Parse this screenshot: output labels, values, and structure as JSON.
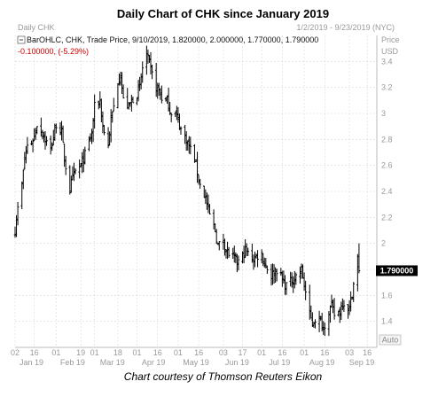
{
  "title": "Daily Chart of CHK since January 2019",
  "caption": "Chart courtesy of Thomson Reuters Eikon",
  "header": {
    "left_label": "Daily CHK",
    "date_range": "1/2/2019 - 9/23/2019 (NYC)",
    "price_label": "Price",
    "currency_label": "USD",
    "ohlc_line": "BarOHLC, CHK, Trade Price, 9/10/2019, 1.820000, 2.000000, 1.770000, 1.790000",
    "change_line": "-0.100000, (-5.29%)",
    "auto_label": "Auto"
  },
  "last_price_label": "1.790000",
  "colors": {
    "bar": "#000000",
    "grid": "#d8d8d8",
    "axis_text": "#9a9a9a",
    "negative": "#d00000",
    "last_price_bg": "#000000"
  },
  "icons": {
    "legend_toggle": "minus-box-icon"
  },
  "chart_data": {
    "type": "ohlc",
    "title": "Daily Chart of CHK since January 2019",
    "ylim": [
      1.2,
      3.6
    ],
    "y_ticks": [
      1.4,
      1.6,
      1.8,
      2,
      2.2,
      2.4,
      2.6,
      2.8,
      3,
      3.2,
      3.4
    ],
    "y_tick_labels": [
      "1.4",
      "1.6",
      "1.8",
      "2",
      "2.2",
      "2.4",
      "2.6",
      "2.8",
      "3",
      "3.2",
      "3.4"
    ],
    "x_day_ticks": [
      {
        "label": "02",
        "date": "2019-01-02"
      },
      {
        "label": "16",
        "date": "2019-01-16"
      },
      {
        "label": "01",
        "date": "2019-02-01"
      },
      {
        "label": "19",
        "date": "2019-02-19"
      },
      {
        "label": "01",
        "date": "2019-03-01"
      },
      {
        "label": "18",
        "date": "2019-03-18"
      },
      {
        "label": "01",
        "date": "2019-04-01"
      },
      {
        "label": "16",
        "date": "2019-04-16"
      },
      {
        "label": "01",
        "date": "2019-05-01"
      },
      {
        "label": "16",
        "date": "2019-05-16"
      },
      {
        "label": "03",
        "date": "2019-06-03"
      },
      {
        "label": "17",
        "date": "2019-06-17"
      },
      {
        "label": "01",
        "date": "2019-07-01"
      },
      {
        "label": "16",
        "date": "2019-07-16"
      },
      {
        "label": "01",
        "date": "2019-08-01"
      },
      {
        "label": "16",
        "date": "2019-08-16"
      },
      {
        "label": "03",
        "date": "2019-09-03"
      },
      {
        "label": "16",
        "date": "2019-09-16"
      }
    ],
    "x_month_ticks": [
      {
        "label": "Jan 19",
        "date": "2019-01-14"
      },
      {
        "label": "Feb 19",
        "date": "2019-02-13"
      },
      {
        "label": "Mar 19",
        "date": "2019-03-14"
      },
      {
        "label": "Apr 19",
        "date": "2019-04-13"
      },
      {
        "label": "May 19",
        "date": "2019-05-14"
      },
      {
        "label": "Jun 19",
        "date": "2019-06-13"
      },
      {
        "label": "Jul 19",
        "date": "2019-07-14"
      },
      {
        "label": "Aug 19",
        "date": "2019-08-14"
      },
      {
        "label": "Sep 19",
        "date": "2019-09-12"
      }
    ],
    "x_range": [
      "2019-01-02",
      "2019-09-23"
    ],
    "close_anchors": [
      [
        "2019-01-02",
        2.1
      ],
      [
        "2019-01-03",
        2.2
      ],
      [
        "2019-01-07",
        2.45
      ],
      [
        "2019-01-09",
        2.65
      ],
      [
        "2019-01-11",
        2.75
      ],
      [
        "2019-01-14",
        2.78
      ],
      [
        "2019-01-16",
        2.82
      ],
      [
        "2019-01-18",
        2.92
      ],
      [
        "2019-01-22",
        2.85
      ],
      [
        "2019-01-24",
        2.8
      ],
      [
        "2019-01-28",
        2.72
      ],
      [
        "2019-01-30",
        2.82
      ],
      [
        "2019-02-01",
        2.92
      ],
      [
        "2019-02-05",
        2.85
      ],
      [
        "2019-02-07",
        2.65
      ],
      [
        "2019-02-11",
        2.42
      ],
      [
        "2019-02-13",
        2.5
      ],
      [
        "2019-02-15",
        2.55
      ],
      [
        "2019-02-19",
        2.6
      ],
      [
        "2019-02-21",
        2.65
      ],
      [
        "2019-02-25",
        2.78
      ],
      [
        "2019-02-27",
        2.85
      ],
      [
        "2019-03-01",
        3.05
      ],
      [
        "2019-03-05",
        3.1
      ],
      [
        "2019-03-07",
        2.9
      ],
      [
        "2019-03-11",
        2.75
      ],
      [
        "2019-03-13",
        2.95
      ],
      [
        "2019-03-15",
        3.05
      ],
      [
        "2019-03-18",
        3.25
      ],
      [
        "2019-03-20",
        3.3
      ],
      [
        "2019-03-22",
        3.1
      ],
      [
        "2019-03-26",
        3.05
      ],
      [
        "2019-03-28",
        3.1
      ],
      [
        "2019-04-01",
        3.15
      ],
      [
        "2019-04-03",
        3.2
      ],
      [
        "2019-04-05",
        3.35
      ],
      [
        "2019-04-08",
        3.45
      ],
      [
        "2019-04-10",
        3.38
      ],
      [
        "2019-04-12",
        3.3
      ],
      [
        "2019-04-15",
        3.2
      ],
      [
        "2019-04-17",
        3.18
      ],
      [
        "2019-04-19",
        3.12
      ],
      [
        "2019-04-23",
        3.1
      ],
      [
        "2019-04-25",
        3.02
      ],
      [
        "2019-04-29",
        3.0
      ],
      [
        "2019-05-01",
        2.95
      ],
      [
        "2019-05-03",
        2.88
      ],
      [
        "2019-05-07",
        2.8
      ],
      [
        "2019-05-09",
        2.75
      ],
      [
        "2019-05-13",
        2.65
      ],
      [
        "2019-05-15",
        2.55
      ],
      [
        "2019-05-17",
        2.45
      ],
      [
        "2019-05-21",
        2.35
      ],
      [
        "2019-05-23",
        2.25
      ],
      [
        "2019-05-28",
        2.1
      ],
      [
        "2019-05-30",
        1.98
      ],
      [
        "2019-06-03",
        2.02
      ],
      [
        "2019-06-05",
        1.95
      ],
      [
        "2019-06-07",
        1.92
      ],
      [
        "2019-06-11",
        1.88
      ],
      [
        "2019-06-13",
        1.85
      ],
      [
        "2019-06-17",
        1.9
      ],
      [
        "2019-06-19",
        1.95
      ],
      [
        "2019-06-21",
        1.92
      ],
      [
        "2019-06-25",
        1.88
      ],
      [
        "2019-06-27",
        1.9
      ],
      [
        "2019-07-01",
        1.92
      ],
      [
        "2019-07-03",
        1.85
      ],
      [
        "2019-07-08",
        1.75
      ],
      [
        "2019-07-10",
        1.78
      ],
      [
        "2019-07-12",
        1.8
      ],
      [
        "2019-07-16",
        1.72
      ],
      [
        "2019-07-18",
        1.68
      ],
      [
        "2019-07-22",
        1.7
      ],
      [
        "2019-07-24",
        1.72
      ],
      [
        "2019-07-26",
        1.75
      ],
      [
        "2019-07-30",
        1.8
      ],
      [
        "2019-08-01",
        1.68
      ],
      [
        "2019-08-05",
        1.45
      ],
      [
        "2019-08-07",
        1.38
      ],
      [
        "2019-08-09",
        1.42
      ],
      [
        "2019-08-13",
        1.4
      ],
      [
        "2019-08-15",
        1.35
      ],
      [
        "2019-08-19",
        1.48
      ],
      [
        "2019-08-21",
        1.52
      ],
      [
        "2019-08-23",
        1.45
      ],
      [
        "2019-08-27",
        1.48
      ],
      [
        "2019-08-29",
        1.55
      ],
      [
        "2019-09-03",
        1.5
      ],
      [
        "2019-09-05",
        1.62
      ],
      [
        "2019-09-09",
        1.89
      ],
      [
        "2019-09-10",
        1.79
      ]
    ],
    "last_bar": {
      "date": "2019-09-10",
      "open": 1.82,
      "high": 2.0,
      "low": 1.77,
      "close": 1.79
    }
  }
}
